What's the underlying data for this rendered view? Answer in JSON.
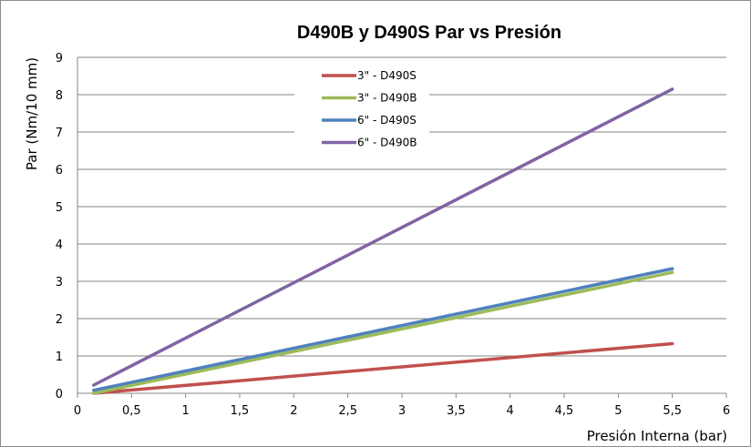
{
  "chart_data": {
    "type": "line",
    "title": "D490B y D490S Par vs Presión",
    "xlabel": "Presión Interna (bar)",
    "ylabel": "Par (Nm/10 mm)",
    "xlim": [
      0,
      6
    ],
    "ylim": [
      0,
      9
    ],
    "x_ticks": [
      "0",
      "0,5",
      "1",
      "1,5",
      "2",
      "2,5",
      "3",
      "3,5",
      "4",
      "4,5",
      "5",
      "5,5",
      "6"
    ],
    "y_ticks": [
      "0",
      "1",
      "2",
      "3",
      "4",
      "5",
      "6",
      "7",
      "8",
      "9"
    ],
    "grid": "horizontal",
    "legend_position": "top-center",
    "series": [
      {
        "name": "3\" - D490S",
        "color": "#c0504d",
        "x": [
          0.15,
          5.5
        ],
        "y": [
          0.0,
          1.33
        ]
      },
      {
        "name": "3\" - D490B",
        "color": "#9bbb59",
        "x": [
          0.15,
          5.5
        ],
        "y": [
          0.0,
          3.24
        ]
      },
      {
        "name": "6\" - D490S",
        "color": "#4f81bd",
        "x": [
          0.15,
          5.5
        ],
        "y": [
          0.08,
          3.34
        ]
      },
      {
        "name": "6\" - D490B",
        "color": "#8064a2",
        "x": [
          0.15,
          5.5
        ],
        "y": [
          0.22,
          8.15
        ]
      }
    ]
  }
}
